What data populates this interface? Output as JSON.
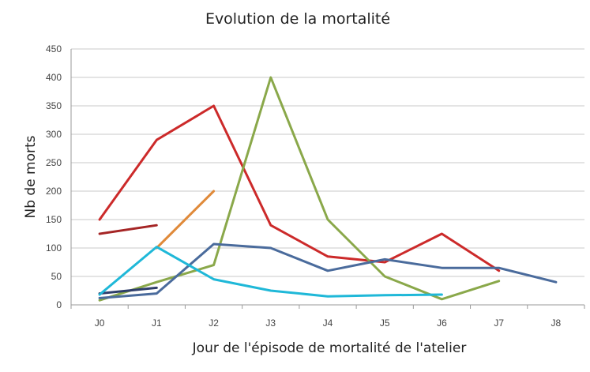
{
  "chart_data": {
    "type": "line",
    "title": "Evolution de la mortalité",
    "xlabel": "Jour de l'épisode de mortalité de l'atelier",
    "ylabel": "Nb de morts",
    "categories": [
      "J0",
      "J1",
      "J2",
      "J3",
      "J4",
      "J5",
      "J6",
      "J7",
      "J8"
    ],
    "ylim": [
      0,
      450
    ],
    "yticks": [
      0,
      50,
      100,
      150,
      200,
      250,
      300,
      350,
      400,
      450
    ],
    "grid": true,
    "legend": "none",
    "series": [
      {
        "color": "#cc2a2a",
        "points": [
          [
            0,
            150
          ],
          [
            1,
            290
          ],
          [
            2,
            350
          ],
          [
            3,
            140
          ],
          [
            4,
            85
          ],
          [
            5,
            75
          ],
          [
            6,
            125
          ],
          [
            7,
            60
          ]
        ]
      },
      {
        "color": "#a52525",
        "points": [
          [
            0,
            125
          ],
          [
            1,
            140
          ]
        ]
      },
      {
        "color": "#e08a3a",
        "points": [
          [
            1,
            100
          ],
          [
            2,
            200
          ]
        ]
      },
      {
        "color": "#8aa84a",
        "points": [
          [
            0,
            8
          ],
          [
            1,
            40
          ],
          [
            2,
            70
          ],
          [
            3,
            400
          ],
          [
            4,
            150
          ],
          [
            5,
            50
          ],
          [
            6,
            10
          ],
          [
            7,
            42
          ]
        ]
      },
      {
        "color": "#4a6b9c",
        "points": [
          [
            0,
            12
          ],
          [
            1,
            20
          ],
          [
            2,
            107
          ],
          [
            3,
            100
          ],
          [
            4,
            60
          ],
          [
            5,
            80
          ],
          [
            6,
            65
          ],
          [
            7,
            65
          ],
          [
            8,
            40
          ]
        ]
      },
      {
        "color": "#2e3e6b",
        "points": [
          [
            0,
            20
          ],
          [
            1,
            30
          ]
        ]
      },
      {
        "color": "#1fb8d8",
        "points": [
          [
            0,
            18
          ],
          [
            1,
            102
          ],
          [
            2,
            45
          ],
          [
            3,
            25
          ],
          [
            4,
            15
          ],
          [
            5,
            17
          ],
          [
            6,
            18
          ]
        ]
      }
    ]
  }
}
